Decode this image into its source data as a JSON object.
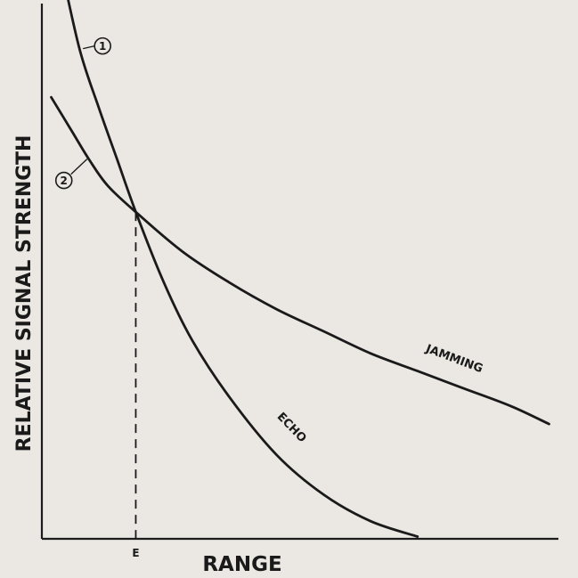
{
  "chart_data": {
    "type": "line",
    "title": "",
    "xlabel": "RANGE",
    "ylabel": "RELATIVE SIGNAL STRENGTH",
    "x_ticks": [
      "E"
    ],
    "x_tick_values": [
      1
    ],
    "xlim": [
      0,
      5.5
    ],
    "ylim": [
      0,
      12
    ],
    "grid": false,
    "series": [
      {
        "name": "ECHO",
        "marker": "1",
        "x": [
          0.2,
          0.4,
          0.6,
          0.8,
          1.0,
          1.3,
          1.6,
          2.0,
          2.5,
          3.0,
          3.5,
          4.0
        ],
        "y": [
          13.0,
          11.1,
          9.8,
          8.6,
          7.4,
          5.8,
          4.5,
          3.2,
          1.9,
          1.0,
          0.4,
          0.05
        ]
      },
      {
        "name": "JAMMING",
        "marker": "2",
        "x": [
          0.1,
          0.3,
          0.5,
          0.7,
          1.0,
          1.5,
          2.0,
          2.5,
          3.0,
          3.5,
          4.0,
          4.5,
          5.0,
          5.4
        ],
        "y": [
          10.0,
          9.3,
          8.6,
          8.0,
          7.4,
          6.5,
          5.8,
          5.2,
          4.7,
          4.2,
          3.8,
          3.4,
          3.0,
          2.6
        ]
      }
    ]
  }
}
